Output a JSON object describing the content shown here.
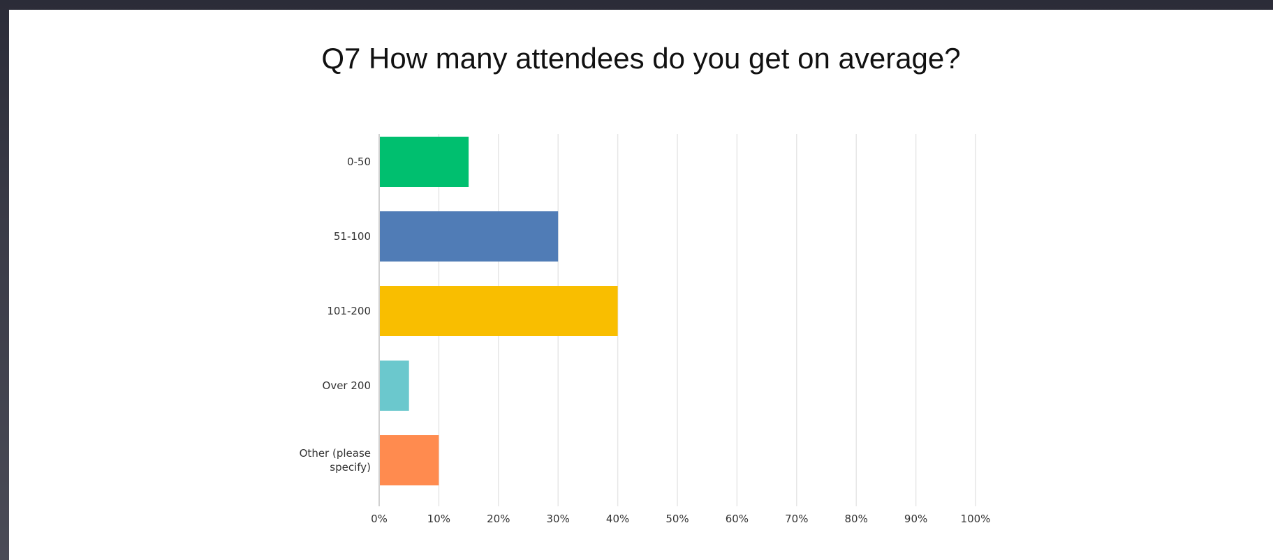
{
  "chart_data": {
    "type": "bar",
    "orientation": "horizontal",
    "title": "Q7 How many attendees do you get on average?",
    "xlabel": "",
    "ylabel": "",
    "categories": [
      [
        "0-50"
      ],
      [
        "51-100"
      ],
      [
        "101-200"
      ],
      [
        "Over 200"
      ],
      [
        "Other (please",
        "specify)"
      ]
    ],
    "values": [
      15,
      30,
      40,
      5,
      10
    ],
    "colors": [
      "#00bf6f",
      "#507cb6",
      "#f9be00",
      "#6bc8cd",
      "#ff8b4f"
    ],
    "xlim": [
      0,
      100
    ],
    "ticks": [
      {
        "value": 0,
        "label": "0%"
      },
      {
        "value": 10,
        "label": "10%"
      },
      {
        "value": 20,
        "label": "20%"
      },
      {
        "value": 30,
        "label": "30%"
      },
      {
        "value": 40,
        "label": "40%"
      },
      {
        "value": 50,
        "label": "50%"
      },
      {
        "value": 60,
        "label": "60%"
      },
      {
        "value": 70,
        "label": "70%"
      },
      {
        "value": 80,
        "label": "80%"
      },
      {
        "value": 90,
        "label": "90%"
      },
      {
        "value": 100,
        "label": "100%"
      }
    ],
    "grid": true,
    "legend": "none"
  }
}
